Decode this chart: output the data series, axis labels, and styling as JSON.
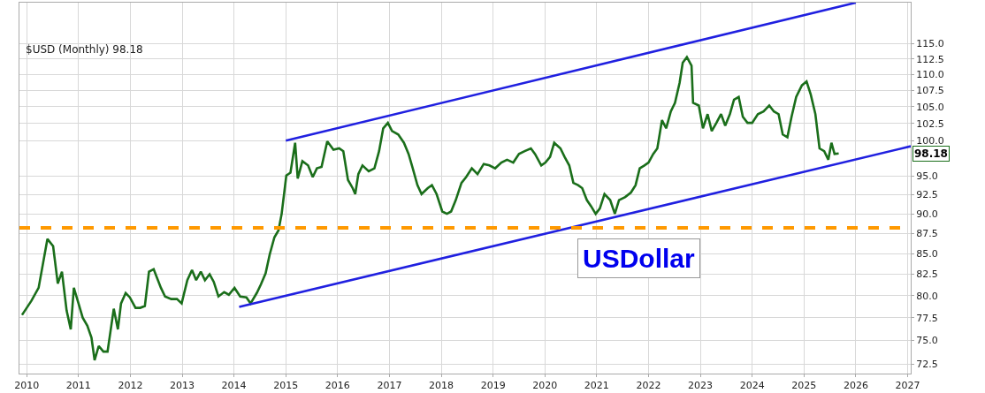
{
  "chart_data": {
    "type": "line",
    "annotations": [
      {
        "text": "$USD (Monthly) 98.18"
      },
      {
        "text": "USDollar"
      },
      {
        "text": "98.18",
        "y": 98.18
      }
    ],
    "xlim": [
      2009.86,
      2027.06
    ],
    "xticks": [
      2010,
      2011,
      2012,
      2013,
      2014,
      2015,
      2016,
      2017,
      2018,
      2019,
      2020,
      2021,
      2022,
      2023,
      2024,
      2025,
      2026,
      2027
    ],
    "ylim": [
      71.5,
      122
    ],
    "log": true,
    "yticks": [
      72.5,
      {
        "value": 75,
        "label": "75.0"
      },
      77.5,
      {
        "value": 80,
        "label": "80.0"
      },
      82.5,
      {
        "value": 85,
        "label": "85.0"
      },
      87.5,
      {
        "value": 90,
        "label": "90.0"
      },
      92.5,
      {
        "value": 95,
        "label": "95.0"
      },
      {
        "value": 100,
        "label": "100.0"
      },
      102.5,
      {
        "value": 105,
        "label": "105.0"
      },
      107.5,
      {
        "value": 110,
        "label": "110.0"
      },
      112.5,
      {
        "value": 115,
        "label": "115.0"
      }
    ],
    "grid": true,
    "marker": "none",
    "line_style": "solid",
    "ref_lines": [
      {
        "axis": "y",
        "value": 88.2,
        "color": "#ff9900",
        "line_style": "dashed"
      }
    ],
    "series": [
      {
        "color": "#1a6e1a",
        "x": [
          2009.91,
          2010.09,
          2010.23,
          2010.4,
          2010.51,
          2010.6,
          2010.68,
          2010.77,
          2010.85,
          2010.91,
          2011.0,
          2011.08,
          2011.17,
          2011.25,
          2011.31,
          2011.39,
          2011.48,
          2011.56,
          2011.68,
          2011.76,
          2011.82,
          2011.91,
          2011.99,
          2012.1,
          2012.19,
          2012.28,
          2012.36,
          2012.45,
          2012.59,
          2012.67,
          2012.79,
          2012.9,
          2012.99,
          2013.1,
          2013.19,
          2013.27,
          2013.36,
          2013.44,
          2013.53,
          2013.61,
          2013.7,
          2013.81,
          2013.9,
          2014.01,
          2014.12,
          2014.24,
          2014.32,
          2014.44,
          2014.52,
          2014.61,
          2014.69,
          2014.78,
          2014.86,
          2014.92,
          2015.01,
          2015.09,
          2015.18,
          2015.23,
          2015.32,
          2015.43,
          2015.52,
          2015.6,
          2015.69,
          2015.8,
          2015.92,
          2016.03,
          2016.11,
          2016.2,
          2016.29,
          2016.34,
          2016.4,
          2016.48,
          2016.6,
          2016.71,
          2016.8,
          2016.88,
          2016.97,
          2017.05,
          2017.17,
          2017.28,
          2017.37,
          2017.45,
          2017.54,
          2017.62,
          2017.74,
          2017.82,
          2017.91,
          2018.02,
          2018.11,
          2018.19,
          2018.28,
          2018.39,
          2018.48,
          2018.59,
          2018.7,
          2018.82,
          2018.93,
          2019.04,
          2019.16,
          2019.27,
          2019.39,
          2019.5,
          2019.61,
          2019.73,
          2019.81,
          2019.93,
          2020.01,
          2020.1,
          2020.18,
          2020.3,
          2020.38,
          2020.47,
          2020.55,
          2020.64,
          2020.72,
          2020.81,
          2020.89,
          2020.98,
          2021.06,
          2021.15,
          2021.26,
          2021.35,
          2021.43,
          2021.55,
          2021.66,
          2021.75,
          2021.83,
          2021.92,
          2022.0,
          2022.09,
          2022.17,
          2022.26,
          2022.34,
          2022.43,
          2022.51,
          2022.6,
          2022.66,
          2022.74,
          2022.83,
          2022.86,
          2022.97,
          2023.05,
          2023.14,
          2023.22,
          2023.31,
          2023.4,
          2023.48,
          2023.57,
          2023.65,
          2023.74,
          2023.82,
          2023.91,
          2024.0,
          2024.11,
          2024.22,
          2024.33,
          2024.42,
          2024.51,
          2024.59,
          2024.68,
          2024.76,
          2024.85,
          2024.96,
          2025.05,
          2025.13,
          2025.22,
          2025.3,
          2025.39,
          2025.47,
          2025.53,
          2025.59,
          2025.67
        ],
        "values": [
          77.8,
          79.4,
          80.9,
          86.8,
          85.9,
          81.4,
          82.8,
          78.3,
          76.2,
          80.9,
          79.1,
          77.5,
          76.6,
          75.3,
          72.9,
          74.4,
          73.8,
          73.8,
          78.5,
          76.2,
          79.1,
          80.3,
          79.8,
          78.6,
          78.6,
          78.8,
          82.8,
          83.1,
          80.9,
          79.9,
          79.6,
          79.6,
          79.1,
          81.8,
          83.0,
          81.8,
          82.8,
          81.8,
          82.5,
          81.6,
          79.9,
          80.4,
          80.1,
          80.9,
          79.9,
          79.8,
          79.1,
          80.3,
          81.3,
          82.6,
          84.9,
          87.0,
          87.9,
          90.0,
          95.1,
          95.5,
          99.7,
          94.7,
          97.1,
          96.5,
          94.9,
          96.1,
          96.3,
          99.9,
          98.7,
          98.9,
          98.5,
          94.5,
          93.4,
          92.6,
          95.3,
          96.5,
          95.7,
          96.1,
          98.5,
          101.8,
          102.6,
          101.4,
          100.9,
          99.7,
          98.1,
          96.1,
          93.8,
          92.6,
          93.4,
          93.8,
          92.6,
          90.3,
          90.0,
          90.3,
          91.8,
          94.1,
          94.9,
          96.1,
          95.3,
          96.7,
          96.5,
          96.1,
          96.9,
          97.3,
          96.9,
          98.1,
          98.5,
          98.9,
          98.1,
          96.5,
          96.9,
          97.7,
          99.7,
          98.9,
          97.7,
          96.5,
          94.1,
          93.8,
          93.4,
          91.8,
          91.0,
          90.0,
          90.7,
          92.6,
          91.8,
          90.0,
          91.8,
          92.2,
          92.8,
          93.8,
          96.1,
          96.5,
          96.9,
          98.1,
          98.9,
          103.0,
          101.8,
          104.3,
          105.6,
          108.7,
          111.9,
          112.8,
          111.4,
          105.6,
          105.2,
          101.8,
          103.9,
          101.4,
          102.6,
          103.9,
          102.2,
          103.9,
          106.1,
          106.5,
          103.5,
          102.6,
          102.6,
          103.9,
          104.3,
          105.2,
          104.3,
          103.9,
          100.9,
          100.5,
          103.5,
          106.5,
          108.3,
          108.9,
          106.9,
          103.9,
          98.9,
          98.5,
          97.3,
          99.7,
          98.1,
          98.18
        ]
      },
      {
        "type": "line",
        "color": "#2020e0",
        "x": [
          2015.0,
          2026.0
        ],
        "values": [
          100.0,
          122.0
        ]
      },
      {
        "type": "line",
        "color": "#2020e0",
        "x": [
          2014.1,
          2027.06
        ],
        "values": [
          78.7,
          99.2
        ]
      }
    ]
  }
}
